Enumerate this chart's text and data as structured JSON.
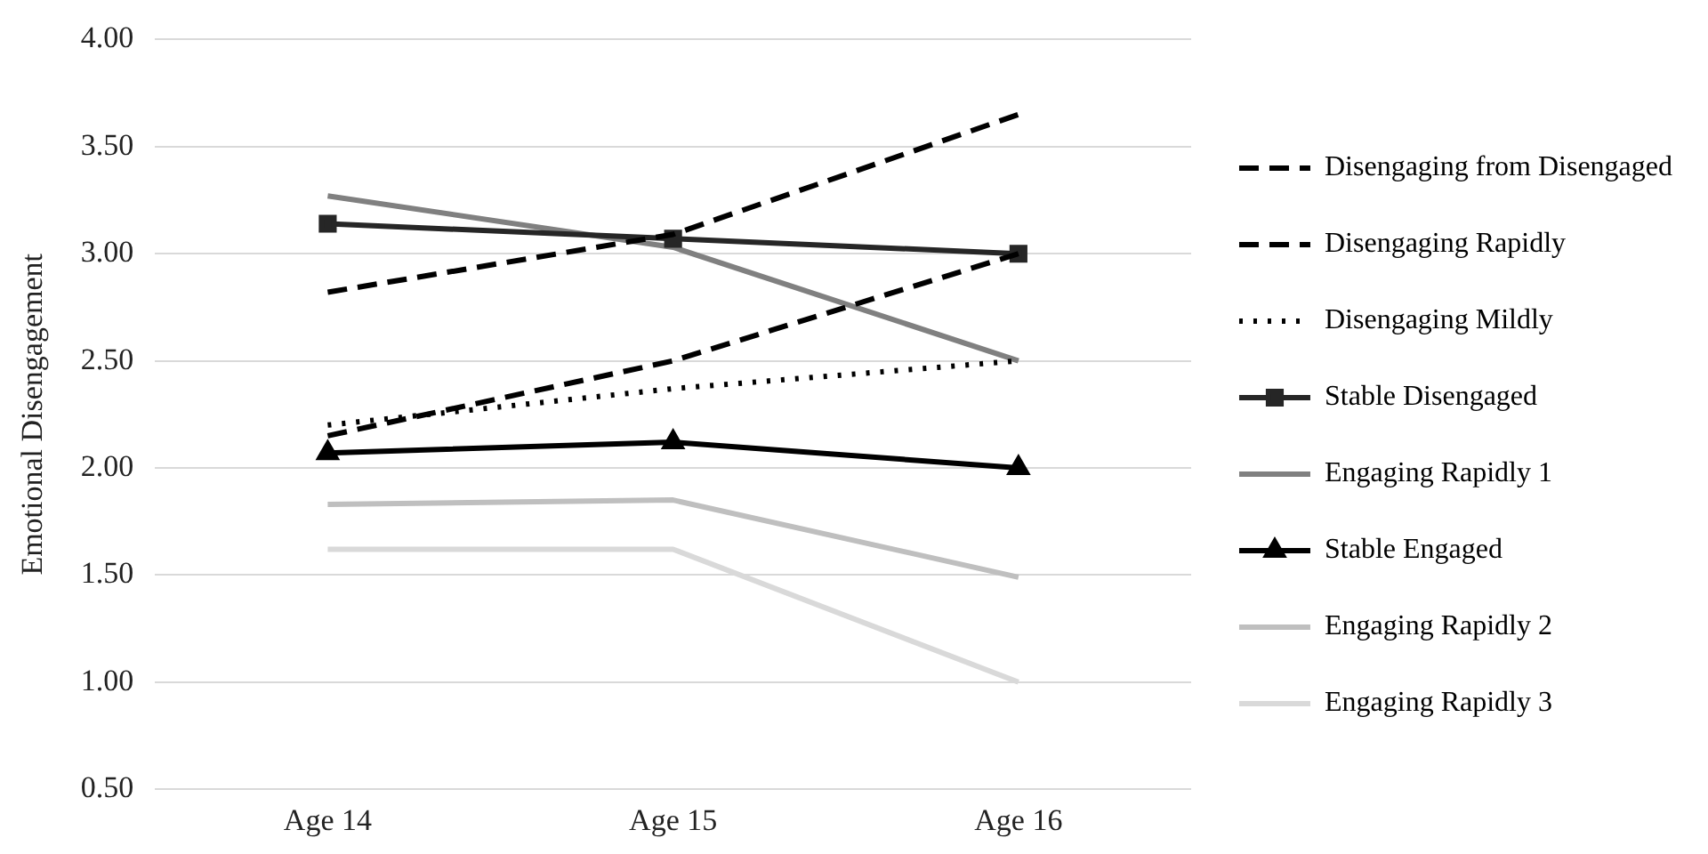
{
  "chart_data": {
    "type": "line",
    "ylabel": "Emotional Disengagement",
    "categories": [
      "Age 14",
      "Age 15",
      "Age 16"
    ],
    "series": [
      {
        "name": "Disengaging from Disengaged",
        "color": "#000000",
        "line_style": "dashed",
        "marker": "none",
        "values": [
          2.82,
          3.09,
          3.65
        ]
      },
      {
        "name": "Disengaging Rapidly",
        "color": "#000000",
        "line_style": "dashed",
        "marker": "none",
        "values": [
          2.15,
          2.5,
          3.0
        ]
      },
      {
        "name": "Disengaging Mildly",
        "color": "#000000",
        "line_style": "dotted",
        "marker": "none",
        "values": [
          2.2,
          2.37,
          2.5
        ]
      },
      {
        "name": "Stable Disengaged",
        "color": "#262626",
        "line_style": "solid",
        "marker": "square",
        "values": [
          3.14,
          3.07,
          3.0
        ]
      },
      {
        "name": "Engaging Rapidly 1",
        "color": "#808080",
        "line_style": "solid",
        "marker": "none",
        "values": [
          3.27,
          3.03,
          2.5
        ]
      },
      {
        "name": "Stable Engaged",
        "color": "#000000",
        "line_style": "solid",
        "marker": "triangle",
        "values": [
          2.07,
          2.12,
          2.0
        ]
      },
      {
        "name": "Engaging Rapidly 2",
        "color": "#bfbfbf",
        "line_style": "solid",
        "marker": "none",
        "values": [
          1.83,
          1.85,
          1.49
        ]
      },
      {
        "name": "Engaging Rapidly 3",
        "color": "#d9d9d9",
        "line_style": "solid",
        "marker": "none",
        "values": [
          1.62,
          1.62,
          1.0
        ]
      }
    ],
    "ylim": [
      0.5,
      4.0
    ],
    "yticks": [
      {
        "value": 0.5,
        "label": "0.50"
      },
      {
        "value": 1.0,
        "label": "1.00"
      },
      {
        "value": 1.5,
        "label": "1.50"
      },
      {
        "value": 2.0,
        "label": "2.00"
      },
      {
        "value": 2.5,
        "label": "2.50"
      },
      {
        "value": 3.0,
        "label": "3.00"
      },
      {
        "value": 3.5,
        "label": "3.50"
      },
      {
        "value": 4.0,
        "label": "4.00"
      }
    ],
    "grid": "y",
    "legend": "right"
  }
}
